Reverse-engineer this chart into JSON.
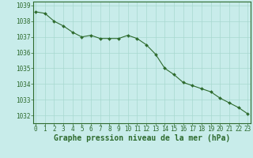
{
  "x": [
    0,
    1,
    2,
    3,
    4,
    5,
    6,
    7,
    8,
    9,
    10,
    11,
    12,
    13,
    14,
    15,
    16,
    17,
    18,
    19,
    20,
    21,
    22,
    23
  ],
  "y": [
    1038.6,
    1038.5,
    1038.0,
    1037.7,
    1037.3,
    1037.0,
    1037.1,
    1036.9,
    1036.9,
    1036.9,
    1037.1,
    1036.9,
    1036.5,
    1035.9,
    1035.0,
    1034.6,
    1034.1,
    1033.9,
    1033.7,
    1033.5,
    1033.1,
    1032.8,
    1032.5,
    1032.1
  ],
  "ylim": [
    1031.5,
    1039.25
  ],
  "yticks": [
    1032,
    1033,
    1034,
    1035,
    1036,
    1037,
    1038,
    1039
  ],
  "xticks": [
    0,
    1,
    2,
    3,
    4,
    5,
    6,
    7,
    8,
    9,
    10,
    11,
    12,
    13,
    14,
    15,
    16,
    17,
    18,
    19,
    20,
    21,
    22,
    23
  ],
  "xlabel": "Graphe pression niveau de la mer (hPa)",
  "line_color": "#2d6a2d",
  "marker_color": "#2d6a2d",
  "bg_color": "#c8ecea",
  "grid_color": "#a8d8d0",
  "border_color": "#2d6a2d",
  "tick_label_fontsize": 5.5,
  "xlabel_fontsize": 7.0
}
